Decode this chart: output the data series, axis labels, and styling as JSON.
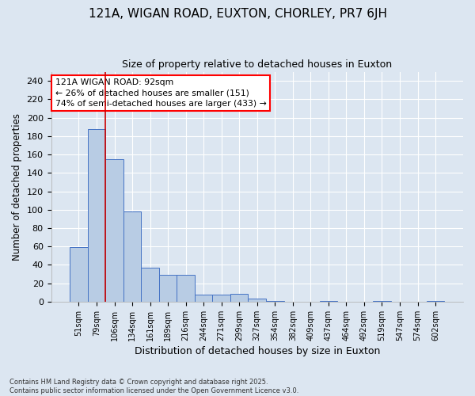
{
  "title_line1": "121A, WIGAN ROAD, EUXTON, CHORLEY, PR7 6JH",
  "title_line2": "Size of property relative to detached houses in Euxton",
  "xlabel": "Distribution of detached houses by size in Euxton",
  "ylabel": "Number of detached properties",
  "categories": [
    "51sqm",
    "79sqm",
    "106sqm",
    "134sqm",
    "161sqm",
    "189sqm",
    "216sqm",
    "244sqm",
    "271sqm",
    "299sqm",
    "327sqm",
    "354sqm",
    "382sqm",
    "409sqm",
    "437sqm",
    "464sqm",
    "492sqm",
    "519sqm",
    "547sqm",
    "574sqm",
    "602sqm"
  ],
  "values": [
    59,
    188,
    155,
    98,
    37,
    29,
    29,
    8,
    8,
    9,
    3,
    1,
    0,
    0,
    1,
    0,
    0,
    1,
    0,
    0,
    1
  ],
  "bar_color": "#b8cce4",
  "bar_edge_color": "#4472c4",
  "background_color": "#dce6f1",
  "plot_bg_color": "#dce6f1",
  "grid_color": "#ffffff",
  "annotation_text": "121A WIGAN ROAD: 92sqm\n← 26% of detached houses are smaller (151)\n74% of semi-detached houses are larger (433) →",
  "vline_color": "#cc0000",
  "vline_x": 1.5,
  "ylim": [
    0,
    250
  ],
  "yticks": [
    0,
    20,
    40,
    60,
    80,
    100,
    120,
    140,
    160,
    180,
    200,
    220,
    240
  ],
  "footer_line1": "Contains HM Land Registry data © Crown copyright and database right 2025.",
  "footer_line2": "Contains public sector information licensed under the Open Government Licence v3.0."
}
